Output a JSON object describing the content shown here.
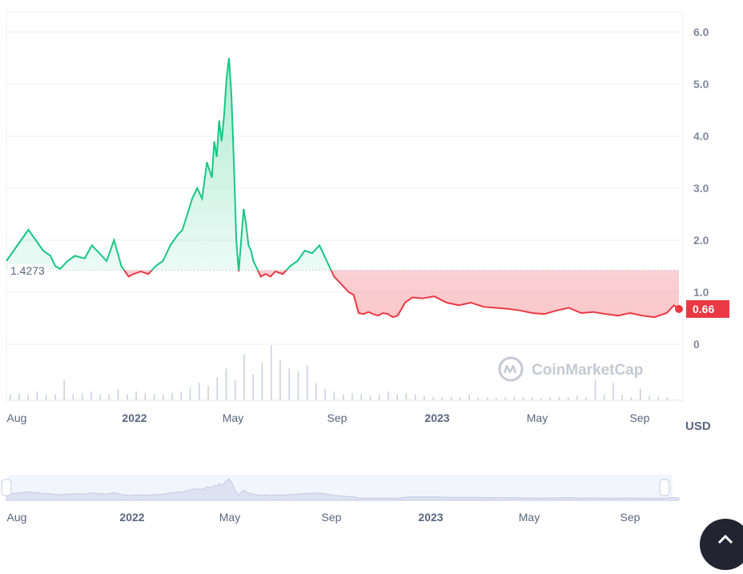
{
  "chart_data": {
    "type": "area",
    "title": "",
    "xlabel": "",
    "ylabel": "",
    "currency_label": "USD",
    "ylim": [
      0,
      6.0
    ],
    "yticks": [
      "6.0",
      "5.0",
      "4.0",
      "3.0",
      "2.0",
      "1.0",
      "0"
    ],
    "reference_value": "1.4273",
    "current_price_label": "0.66",
    "x_labels": [
      {
        "text": "Aug",
        "bold": false
      },
      {
        "text": "2022",
        "bold": true
      },
      {
        "text": "May",
        "bold": false
      },
      {
        "text": "Sep",
        "bold": false
      },
      {
        "text": "2023",
        "bold": true
      },
      {
        "text": "May",
        "bold": false
      },
      {
        "text": "Sep",
        "bold": false
      }
    ],
    "navigator_labels": [
      {
        "text": "Aug",
        "bold": false
      },
      {
        "text": "2022",
        "bold": true
      },
      {
        "text": "May",
        "bold": false
      },
      {
        "text": "Sep",
        "bold": false
      },
      {
        "text": "2023",
        "bold": true
      },
      {
        "text": "May",
        "bold": false
      },
      {
        "text": "Sep",
        "bold": false
      }
    ],
    "x_range_months": [
      0,
      27.5
    ],
    "series": [
      {
        "x": [
          0,
          0.3,
          0.6,
          0.9,
          1.2,
          1.5,
          1.8,
          2.0,
          2.2,
          2.5,
          2.8,
          3.2,
          3.5,
          3.8,
          4.1,
          4.4,
          4.7,
          5.0,
          5.2,
          5.5,
          5.8,
          6.1,
          6.4,
          6.7,
          7.0,
          7.2,
          7.4,
          7.6,
          7.8,
          8.0,
          8.2,
          8.4,
          8.5,
          8.6,
          8.7,
          8.8,
          8.9,
          9.0,
          9.1,
          9.2,
          9.3,
          9.4,
          9.5,
          9.6,
          9.7,
          9.8,
          9.9,
          10.0,
          10.1,
          10.2,
          10.4,
          10.6,
          10.8,
          11.0,
          11.3,
          11.6,
          11.9,
          12.2,
          12.5,
          12.8,
          13.1,
          13.4,
          13.6,
          13.8,
          14.0,
          14.2,
          14.4,
          14.6,
          14.8,
          15.0,
          15.2,
          15.4,
          15.6,
          15.7,
          15.8,
          16.0,
          16.3,
          16.6,
          17.0,
          17.5,
          18.0,
          18.5,
          19.0,
          19.5,
          20.0,
          20.5,
          21.0,
          21.5,
          22.0,
          22.5,
          23.0,
          23.5,
          24.0,
          24.5,
          25.0,
          25.5,
          26.0,
          26.5,
          27.0,
          27.3,
          27.5
        ],
        "y": [
          1.6,
          1.8,
          2.0,
          2.2,
          2.0,
          1.8,
          1.7,
          1.5,
          1.45,
          1.6,
          1.7,
          1.65,
          1.9,
          1.75,
          1.6,
          2.0,
          1.5,
          1.3,
          1.35,
          1.4,
          1.35,
          1.5,
          1.6,
          1.9,
          2.1,
          2.2,
          2.5,
          2.8,
          3.0,
          2.8,
          3.5,
          3.2,
          3.9,
          3.6,
          4.3,
          3.9,
          4.4,
          5.1,
          5.5,
          4.8,
          3.5,
          2.0,
          1.4,
          2.0,
          2.6,
          2.3,
          1.9,
          1.8,
          1.6,
          1.5,
          1.3,
          1.35,
          1.3,
          1.4,
          1.35,
          1.5,
          1.6,
          1.8,
          1.75,
          1.9,
          1.6,
          1.3,
          1.2,
          1.1,
          1.0,
          0.95,
          0.6,
          0.58,
          0.62,
          0.58,
          0.55,
          0.6,
          0.58,
          0.55,
          0.52,
          0.55,
          0.8,
          0.9,
          0.88,
          0.92,
          0.8,
          0.75,
          0.8,
          0.72,
          0.7,
          0.68,
          0.65,
          0.6,
          0.58,
          0.65,
          0.7,
          0.6,
          0.62,
          0.58,
          0.55,
          0.6,
          0.55,
          0.52,
          0.6,
          0.75,
          0.66
        ]
      }
    ],
    "volume": [
      0.1,
      0.12,
      0.1,
      0.15,
      0.1,
      0.1,
      0.35,
      0.1,
      0.12,
      0.15,
      0.1,
      0.1,
      0.2,
      0.1,
      0.15,
      0.12,
      0.1,
      0.1,
      0.12,
      0.15,
      0.22,
      0.3,
      0.25,
      0.4,
      0.55,
      0.35,
      0.8,
      0.45,
      0.65,
      0.95,
      0.7,
      0.55,
      0.5,
      0.6,
      0.3,
      0.2,
      0.15,
      0.1,
      0.12,
      0.1,
      0.08,
      0.1,
      0.15,
      0.1,
      0.12,
      0.1,
      0.08,
      0.06,
      0.05,
      0.06,
      0.05,
      0.1,
      0.04,
      0.05,
      0.04,
      0.05,
      0.06,
      0.05,
      0.05,
      0.04,
      0.05,
      0.06,
      0.05,
      0.08,
      0.05,
      0.35,
      0.1,
      0.3,
      0.1,
      0.05,
      0.2,
      0.08,
      0.06,
      0.05
    ]
  },
  "watermark": {
    "text": "CoinMarketCap"
  },
  "colors": {
    "up": "#16c784",
    "down": "#ea3943",
    "axis_text": "#808a9d",
    "grid": "#eff2f5",
    "navigator_fill": "#e9edfa"
  }
}
